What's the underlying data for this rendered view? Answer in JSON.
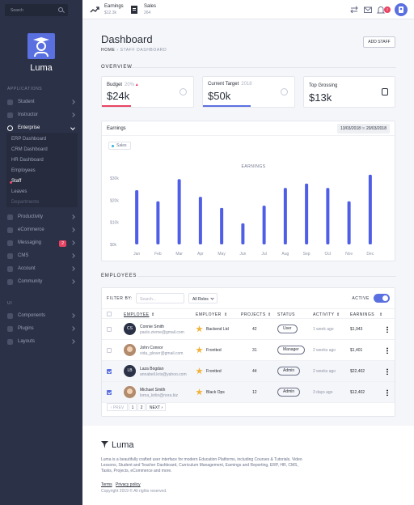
{
  "sidebar": {
    "search_placeholder": "Search",
    "brand": "Luma",
    "section_applications": "APPLICATIONS",
    "section_ui": "UI",
    "items": [
      {
        "label": "Student"
      },
      {
        "label": "Instructor"
      },
      {
        "label": "Enterprise"
      },
      {
        "label": "Productivity"
      },
      {
        "label": "eCommerce"
      },
      {
        "label": "Messaging",
        "badge": "2"
      },
      {
        "label": "CMS"
      },
      {
        "label": "Account"
      },
      {
        "label": "Community"
      }
    ],
    "enterprise_sub": [
      "ERP Dashboard",
      "CRM Dashboard",
      "HR Dashboard",
      "Employees",
      "Staff",
      "Leaves",
      "Departments"
    ],
    "ui_items": [
      {
        "label": "Components"
      },
      {
        "label": "Plugins"
      },
      {
        "label": "Layouts"
      }
    ]
  },
  "topbar": {
    "earnings_label": "Earnings",
    "earnings_value": "$12.3k",
    "sales_label": "Sales",
    "sales_value": "264",
    "notif_count": "2"
  },
  "page": {
    "title": "Dashboard",
    "crumb_home": "HOME",
    "crumb_sep": "›",
    "crumb_current": "STAFF DASHBOARD",
    "add_staff": "ADD STAFF",
    "overview": "OVERVIEW",
    "employees_section": "EMPLOYEES"
  },
  "stats": [
    {
      "label": "Budget",
      "sub": "20%",
      "value": "$24k",
      "bar_color": "#e94363",
      "bar_fraction": 0.32
    },
    {
      "label": "Current Target",
      "sub": "2018",
      "value": "$50k",
      "bar_color": "#5a6fe0",
      "bar_fraction": 0.52
    },
    {
      "label": "Top Grossing",
      "sub": "",
      "value": "$13k",
      "bar_color": "",
      "bar_fraction": 0
    }
  ],
  "chart_card": {
    "title": "Earnings",
    "date_from": "13/03/2018",
    "date_to_word": "to",
    "date_to": "20/03/2018",
    "legend": "Sales"
  },
  "chart_data": {
    "type": "bar",
    "title": "EARNINGS",
    "categories": [
      "Jan",
      "Feb",
      "Mar",
      "Apr",
      "May",
      "Jun",
      "Jul",
      "Aug",
      "Sep",
      "Oct",
      "Nov",
      "Dec"
    ],
    "series": [
      {
        "name": "Sales",
        "values": [
          24.5,
          19.5,
          29.5,
          21.5,
          16.5,
          9.5,
          17.5,
          25.5,
          27.5,
          25.5,
          19.5,
          31.5
        ]
      }
    ],
    "yticks": [
      "$0k",
      "$10k",
      "$20k",
      "$30k"
    ],
    "ylim": [
      0,
      30
    ],
    "color": "#4f5ee6"
  },
  "employees": {
    "filter_by": "FILTER BY:",
    "search_placeholder": "Search...",
    "role_select": "All Roles",
    "active_label": "ACTIVE",
    "columns": [
      "EMPLOYEE",
      "EMPLOYER",
      "PROJECTS",
      "STATUS",
      "ACTIVITY",
      "EARNINGS"
    ],
    "rows": [
      {
        "initials": "CS",
        "name": "Connie Smith",
        "email": "paolo.zieme@gmail.com",
        "employer": "Backend Ltd",
        "projects": "42",
        "status": "User",
        "activity": "1 week ago",
        "earnings": "$1,943",
        "checked": false,
        "avatar_color": "#2b3147"
      },
      {
        "initials": "",
        "name": "John Connor",
        "email": "vida_glover@gmail.com",
        "employer": "Frontted",
        "projects": "31",
        "status": "Manager",
        "activity": "2 weeks ago",
        "earnings": "$1,401",
        "checked": false,
        "avatar_color": ""
      },
      {
        "initials": "LB",
        "name": "Laza Bogdan",
        "email": "annabell.kris@yahoo.com",
        "employer": "Frontted",
        "projects": "44",
        "status": "Admin",
        "activity": "2 weeks ago",
        "earnings": "$22,402",
        "checked": true,
        "avatar_color": "#2b3147"
      },
      {
        "initials": "",
        "name": "Michael Smith",
        "email": "lorna_kirlin@nora.biz",
        "employer": "Black Ops",
        "projects": "12",
        "status": "Admin",
        "activity": "3 days ago",
        "earnings": "$12,402",
        "checked": true,
        "avatar_color": ""
      }
    ],
    "pager": {
      "prev": "‹ PREV",
      "p1": "1",
      "p2": "2",
      "next": "NEXT ›"
    }
  },
  "footer": {
    "brand": "Luma",
    "description": "Luma is a beautifully crafted user interface for modern Education Platforms, including Courses & Tutorials, Video Lessons, Student and Teacher Dashboard, Curriculum Management, Earnings and Reporting, ERP, HR, CMS, Tasks, Projects, eCommerce and more.",
    "terms": "Terms",
    "privacy": "Privacy policy",
    "copyright": "Copyright 2019 © All rights reserved."
  }
}
